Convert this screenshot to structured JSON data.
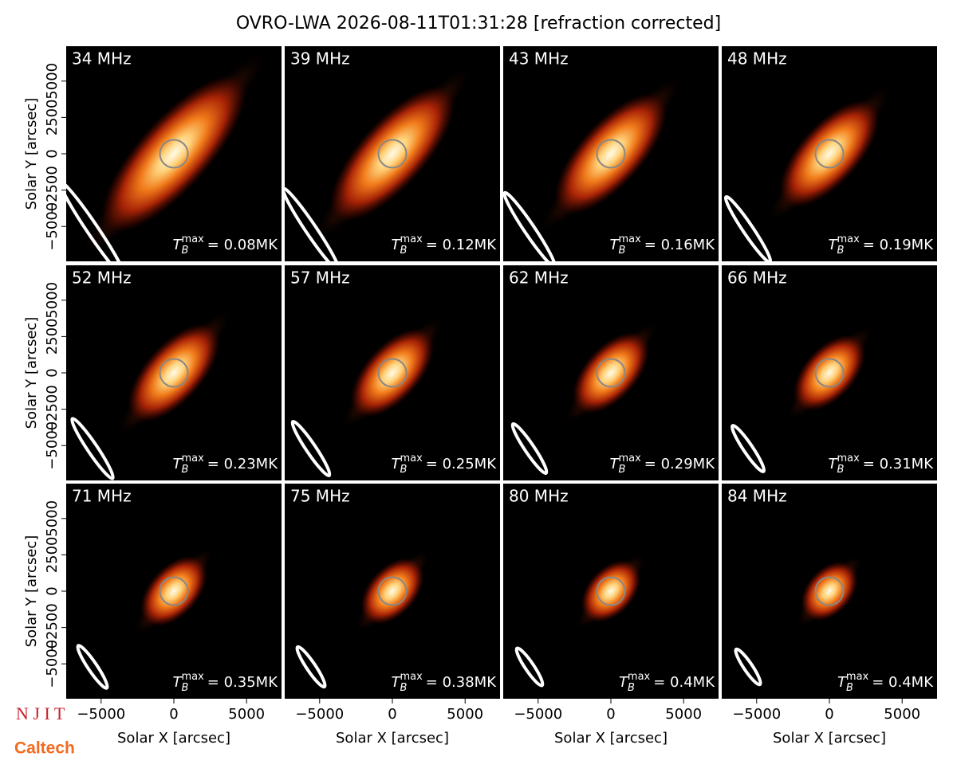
{
  "title": "OVRO-LWA 2026-08-11T01:31:28 [refraction corrected]",
  "logos": [
    "N J I T",
    "Caltech"
  ],
  "annotation_symbol": {
    "main": "T",
    "sub": "B",
    "sup": "max"
  },
  "chart_data": [
    {
      "type": "heatmap",
      "title": "34 MHz",
      "annotation": "= 0.08MK",
      "xlim": [
        -7400,
        7400
      ],
      "ylim": [
        -7400,
        7400
      ],
      "ylabel": "Solar Y [arcsec]",
      "yticks": [
        {
          "value": -5000,
          "label": "−5000"
        },
        {
          "value": -2500,
          "label": "−2500"
        },
        0,
        2500,
        5000
      ]
    },
    {
      "type": "heatmap",
      "title": "39 MHz",
      "annotation": "= 0.12MK",
      "xlim": [
        -7400,
        7400
      ],
      "ylim": [
        -7400,
        7400
      ]
    },
    {
      "type": "heatmap",
      "title": "43 MHz",
      "annotation": "= 0.16MK",
      "xlim": [
        -7400,
        7400
      ],
      "ylim": [
        -7400,
        7400
      ]
    },
    {
      "type": "heatmap",
      "title": "48 MHz",
      "annotation": "= 0.19MK",
      "xlim": [
        -7400,
        7400
      ],
      "ylim": [
        -7400,
        7400
      ]
    },
    {
      "type": "heatmap",
      "title": "52 MHz",
      "annotation": "= 0.23MK",
      "xlim": [
        -7400,
        7400
      ],
      "ylim": [
        -7400,
        7400
      ],
      "ylabel": "Solar Y [arcsec]",
      "yticks": [
        {
          "value": -5000,
          "label": "−5000"
        },
        {
          "value": -2500,
          "label": "−2500"
        },
        0,
        2500,
        5000
      ]
    },
    {
      "type": "heatmap",
      "title": "57 MHz",
      "annotation": "= 0.25MK",
      "xlim": [
        -7400,
        7400
      ],
      "ylim": [
        -7400,
        7400
      ]
    },
    {
      "type": "heatmap",
      "title": "62 MHz",
      "annotation": "= 0.29MK",
      "xlim": [
        -7400,
        7400
      ],
      "ylim": [
        -7400,
        7400
      ]
    },
    {
      "type": "heatmap",
      "title": "66 MHz",
      "annotation": "= 0.31MK",
      "xlim": [
        -7400,
        7400
      ],
      "ylim": [
        -7400,
        7400
      ]
    },
    {
      "type": "heatmap",
      "title": "71 MHz",
      "annotation": "= 0.35MK",
      "xlim": [
        -7400,
        7400
      ],
      "ylim": [
        -7400,
        7400
      ],
      "ylabel": "Solar Y [arcsec]",
      "yticks": [
        {
          "value": -5000,
          "label": "−5000"
        },
        {
          "value": -2500,
          "label": "−2500"
        },
        0,
        2500,
        5000
      ],
      "xlabel": "Solar X [arcsec]",
      "xticks": [
        {
          "value": -5000,
          "label": "−5000"
        },
        0,
        5000
      ]
    },
    {
      "type": "heatmap",
      "title": "75 MHz",
      "annotation": "= 0.38MK",
      "xlim": [
        -7400,
        7400
      ],
      "ylim": [
        -7400,
        7400
      ],
      "xlabel": "Solar X [arcsec]",
      "xticks": [
        {
          "value": -5000,
          "label": "−5000"
        },
        0,
        5000
      ]
    },
    {
      "type": "heatmap",
      "title": "80 MHz",
      "annotation": "= 0.4MK",
      "xlim": [
        -7400,
        7400
      ],
      "ylim": [
        -7400,
        7400
      ],
      "xlabel": "Solar X [arcsec]",
      "xticks": [
        {
          "value": -5000,
          "label": "−5000"
        },
        0,
        5000
      ]
    },
    {
      "type": "heatmap",
      "title": "84 MHz",
      "annotation": "= 0.4MK",
      "xlim": [
        -7400,
        7400
      ],
      "ylim": [
        -7400,
        7400
      ],
      "xlabel": "Solar X [arcsec]",
      "xticks": [
        {
          "value": -5000,
          "label": "−5000"
        },
        0,
        5000
      ]
    }
  ]
}
